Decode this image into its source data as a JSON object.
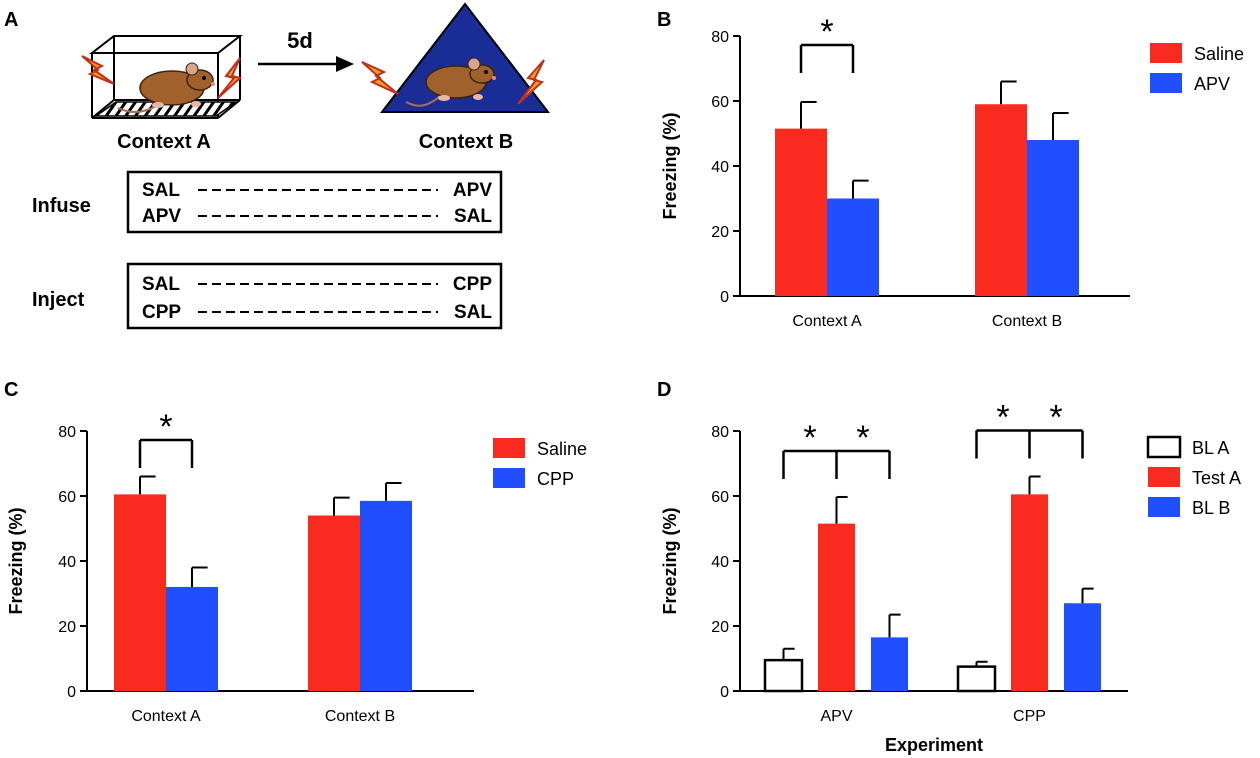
{
  "panel_labels": {
    "a": "A",
    "b": "B",
    "c": "C",
    "d": "D"
  },
  "schematic": {
    "interval_label": "5d",
    "context_a_label": "Context A",
    "context_b_label": "Context B",
    "infuse": {
      "label": "Infuse",
      "rows": [
        {
          "left": "SAL",
          "right": "APV"
        },
        {
          "left": "APV",
          "right": "SAL"
        }
      ]
    },
    "inject": {
      "label": "Inject",
      "rows": [
        {
          "left": "SAL",
          "right": "CPP"
        },
        {
          "left": "CPP",
          "right": "SAL"
        }
      ]
    }
  },
  "colors": {
    "saline": "#fb2a1e",
    "drug": "#1f4fff",
    "baseline": "#ffffff",
    "axis": "#000000"
  },
  "chart_data": [
    {
      "id": "B",
      "type": "bar",
      "title": "",
      "ylabel": "Freezing (%)",
      "xlabel": "",
      "ylim": [
        0,
        80
      ],
      "yticks": [
        0,
        20,
        40,
        60,
        80
      ],
      "categories": [
        "Context A",
        "Context B"
      ],
      "series": [
        {
          "name": "Saline",
          "color": "#fb2a1e",
          "values": [
            51.5,
            59
          ],
          "errors": [
            8.2,
            7
          ]
        },
        {
          "name": "APV",
          "color": "#1f4fff",
          "values": [
            30,
            48
          ],
          "errors": [
            5.5,
            8.3
          ]
        }
      ],
      "significance": [
        {
          "group": "Context A",
          "label": "*"
        }
      ],
      "legend": "top-right"
    },
    {
      "id": "C",
      "type": "bar",
      "title": "",
      "ylabel": "Freezing (%)",
      "xlabel": "",
      "ylim": [
        0,
        80
      ],
      "yticks": [
        0,
        20,
        40,
        60,
        80
      ],
      "categories": [
        "Context A",
        "Context B"
      ],
      "series": [
        {
          "name": "Saline",
          "color": "#fb2a1e",
          "values": [
            60.5,
            54
          ],
          "errors": [
            5.5,
            5.5
          ]
        },
        {
          "name": "CPP",
          "color": "#1f4fff",
          "values": [
            32,
            58.5
          ],
          "errors": [
            6,
            5.5
          ]
        }
      ],
      "significance": [
        {
          "group": "Context A",
          "label": "*"
        }
      ],
      "legend": "top-right"
    },
    {
      "id": "D",
      "type": "bar",
      "title": "",
      "ylabel": "Freezing (%)",
      "xlabel": "Experiment",
      "ylim": [
        0,
        80
      ],
      "yticks": [
        0,
        20,
        40,
        60,
        80
      ],
      "categories": [
        "APV",
        "CPP"
      ],
      "series": [
        {
          "name": "BL A",
          "color": "#ffffff",
          "values": [
            9.5,
            7.5
          ],
          "errors": [
            3.5,
            1.5
          ]
        },
        {
          "name": "Test A",
          "color": "#fb2a1e",
          "values": [
            51.5,
            60.5
          ],
          "errors": [
            8.2,
            5.5
          ]
        },
        {
          "name": "BL B",
          "color": "#1f4fff",
          "values": [
            16.5,
            27
          ],
          "errors": [
            7,
            4.5
          ]
        }
      ],
      "significance": [
        {
          "group": "APV",
          "label": "*"
        },
        {
          "group": "CPP",
          "label": "*"
        }
      ],
      "legend": "top-right"
    }
  ]
}
